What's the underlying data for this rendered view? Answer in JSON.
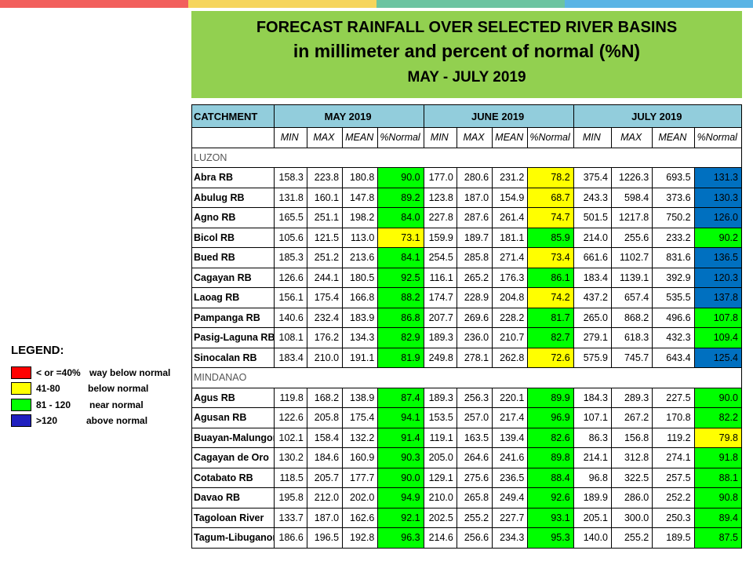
{
  "colors": {
    "top_bar": [
      "#f25f5c",
      "#f6d55c",
      "#6cc4a1",
      "#5ab4e5"
    ],
    "title_bg": "#92d050",
    "header_bg": "#92cddc",
    "red": "#ff0000",
    "yellow": "#ffff00",
    "green": "#00ff00",
    "blue": "#0070c0"
  },
  "title": {
    "line1": "FORECAST RAINFALL OVER SELECTED RIVER BASINS",
    "line2": "in millimeter  and percent of normal (%N)",
    "line3": "MAY - JULY 2019"
  },
  "table": {
    "catchment_label": "CATCHMENT",
    "months": [
      "MAY 2019",
      "JUNE 2019",
      "JULY 2019"
    ],
    "subheaders": [
      "MIN",
      "MAX",
      "MEAN",
      "%Normal"
    ],
    "regions": [
      {
        "name": "LUZON",
        "rows": [
          {
            "name": "Abra RB",
            "values": [
              "158.3",
              "223.8",
              "180.8",
              "90.0",
              "177.0",
              "280.6",
              "231.2",
              "78.2",
              "375.4",
              "1226.3",
              "693.5",
              "131.3"
            ],
            "cls": [
              "green",
              "yellow",
              "blue"
            ]
          },
          {
            "name": "Abulug RB",
            "values": [
              "131.8",
              "160.1",
              "147.8",
              "89.2",
              "123.8",
              "187.0",
              "154.9",
              "68.7",
              "243.3",
              "598.4",
              "373.6",
              "130.3"
            ],
            "cls": [
              "green",
              "yellow",
              "blue"
            ]
          },
          {
            "name": "Agno RB",
            "values": [
              "165.5",
              "251.1",
              "198.2",
              "84.0",
              "227.8",
              "287.6",
              "261.4",
              "74.7",
              "501.5",
              "1217.8",
              "750.2",
              "126.0"
            ],
            "cls": [
              "green",
              "yellow",
              "blue"
            ]
          },
          {
            "name": "Bicol RB",
            "values": [
              "105.6",
              "121.5",
              "113.0",
              "73.1",
              "159.9",
              "189.7",
              "181.1",
              "85.9",
              "214.0",
              "255.6",
              "233.2",
              "90.2"
            ],
            "cls": [
              "yellow",
              "green",
              "green"
            ]
          },
          {
            "name": "Bued RB",
            "values": [
              "185.3",
              "251.2",
              "213.6",
              "84.1",
              "254.5",
              "285.8",
              "271.4",
              "73.4",
              "661.6",
              "1102.7",
              "831.6",
              "136.5"
            ],
            "cls": [
              "green",
              "yellow",
              "blue"
            ]
          },
          {
            "name": "Cagayan RB",
            "values": [
              "126.6",
              "244.1",
              "180.5",
              "92.5",
              "116.1",
              "265.2",
              "176.3",
              "86.1",
              "183.4",
              "1139.1",
              "392.9",
              "120.3"
            ],
            "cls": [
              "green",
              "green",
              "blue"
            ]
          },
          {
            "name": "Laoag RB",
            "values": [
              "156.1",
              "175.4",
              "166.8",
              "88.2",
              "174.7",
              "228.9",
              "204.8",
              "74.2",
              "437.2",
              "657.4",
              "535.5",
              "137.8"
            ],
            "cls": [
              "green",
              "yellow",
              "blue"
            ]
          },
          {
            "name": "Pampanga RB",
            "values": [
              "140.6",
              "232.4",
              "183.9",
              "86.8",
              "207.7",
              "269.6",
              "228.2",
              "81.7",
              "265.0",
              "868.2",
              "496.6",
              "107.8"
            ],
            "cls": [
              "green",
              "green",
              "green"
            ]
          },
          {
            "name": "Pasig-Laguna RB",
            "values": [
              "108.1",
              "176.2",
              "134.3",
              "82.9",
              "189.3",
              "236.0",
              "210.7",
              "82.7",
              "279.1",
              "618.3",
              "432.3",
              "109.4"
            ],
            "cls": [
              "green",
              "green",
              "green"
            ]
          },
          {
            "name": "Sinocalan RB",
            "values": [
              "183.4",
              "210.0",
              "191.1",
              "81.9",
              "249.8",
              "278.1",
              "262.8",
              "72.6",
              "575.9",
              "745.7",
              "643.4",
              "125.4"
            ],
            "cls": [
              "green",
              "yellow",
              "blue"
            ]
          }
        ]
      },
      {
        "name": "MINDANAO",
        "rows": [
          {
            "name": "Agus RB",
            "values": [
              "119.8",
              "168.2",
              "138.9",
              "87.4",
              "189.3",
              "256.3",
              "220.1",
              "89.9",
              "184.3",
              "289.3",
              "227.5",
              "90.0"
            ],
            "cls": [
              "green",
              "green",
              "green"
            ]
          },
          {
            "name": "Agusan RB",
            "values": [
              "122.6",
              "205.8",
              "175.4",
              "94.1",
              "153.5",
              "257.0",
              "217.4",
              "96.9",
              "107.1",
              "267.2",
              "170.8",
              "82.2"
            ],
            "cls": [
              "green",
              "green",
              "green"
            ]
          },
          {
            "name": "Buayan-Malungon",
            "values": [
              "102.1",
              "158.4",
              "132.2",
              "91.4",
              "119.1",
              "163.5",
              "139.4",
              "82.6",
              "86.3",
              "156.8",
              "119.2",
              "79.8"
            ],
            "cls": [
              "green",
              "green",
              "yellow"
            ]
          },
          {
            "name": "Cagayan de Oro",
            "values": [
              "130.2",
              "184.6",
              "160.9",
              "90.3",
              "205.0",
              "264.6",
              "241.6",
              "89.8",
              "214.1",
              "312.8",
              "274.1",
              "91.8"
            ],
            "cls": [
              "green",
              "green",
              "green"
            ]
          },
          {
            "name": "Cotabato RB",
            "values": [
              "118.5",
              "205.7",
              "177.7",
              "90.0",
              "129.1",
              "275.6",
              "236.5",
              "88.4",
              "96.8",
              "322.5",
              "257.5",
              "88.1"
            ],
            "cls": [
              "green",
              "green",
              "green"
            ]
          },
          {
            "name": "Davao RB",
            "values": [
              "195.8",
              "212.0",
              "202.0",
              "94.9",
              "210.0",
              "265.8",
              "249.4",
              "92.6",
              "189.9",
              "286.0",
              "252.2",
              "90.8"
            ],
            "cls": [
              "green",
              "green",
              "green"
            ]
          },
          {
            "name": "Tagoloan River",
            "values": [
              "133.7",
              "187.0",
              "162.6",
              "92.1",
              "202.5",
              "255.2",
              "227.7",
              "93.1",
              "205.1",
              "300.0",
              "250.3",
              "89.4"
            ],
            "cls": [
              "green",
              "green",
              "green"
            ]
          },
          {
            "name": "Tagum-Libuganon",
            "values": [
              "186.6",
              "196.5",
              "192.8",
              "96.3",
              "214.6",
              "256.6",
              "234.3",
              "95.3",
              "140.0",
              "255.2",
              "189.5",
              "87.5"
            ],
            "cls": [
              "green",
              "green",
              "green"
            ]
          }
        ]
      }
    ]
  },
  "legend": {
    "title": "LEGEND:",
    "items": [
      {
        "range": "< or =40%",
        "desc": "way below normal",
        "color": "#ff0000"
      },
      {
        "range": "41-80",
        "desc": "below normal",
        "color": "#ffff00"
      },
      {
        "range": "81 - 120",
        "desc": "near normal",
        "color": "#00ff00"
      },
      {
        "range": ">120",
        "desc": "above normal",
        "color": "#2020c0"
      }
    ]
  }
}
